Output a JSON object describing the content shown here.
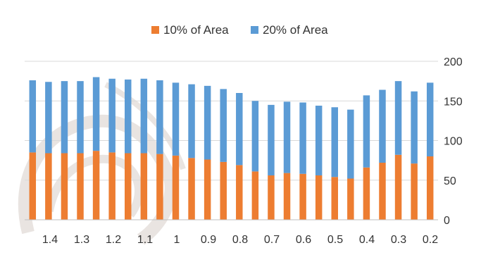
{
  "chart_data": {
    "type": "bar",
    "stacked": true,
    "title": "",
    "xlabel": "",
    "ylabel": "",
    "ylim": [
      0,
      200
    ],
    "y_axis_side": "right",
    "y_ticks": [
      "0",
      "50",
      "100",
      "150",
      "200"
    ],
    "x_tick_labels": [
      "1.4",
      "1.3",
      "1.2",
      "1.1",
      "1",
      "0.9",
      "0.8",
      "0.7",
      "0.6",
      "0.5",
      "0.4",
      "0.3",
      "0.2"
    ],
    "grid": true,
    "legend_position": "top",
    "series": [
      {
        "name": "10% of Area",
        "color": "#ED7D31",
        "values": [
          85,
          84,
          84,
          84,
          87,
          85,
          84,
          84,
          83,
          81,
          78,
          76,
          73,
          69,
          61,
          56,
          59,
          58,
          56,
          54,
          52,
          66,
          72,
          82,
          71,
          80
        ]
      },
      {
        "name": "20% of Area",
        "color": "#5B9BD5",
        "values": [
          91,
          90,
          91,
          91,
          93,
          93,
          93,
          94,
          93,
          92,
          93,
          93,
          92,
          91,
          89,
          89,
          90,
          90,
          88,
          88,
          87,
          91,
          92,
          93,
          91,
          93
        ]
      }
    ]
  },
  "watermark": {
    "text": ""
  }
}
